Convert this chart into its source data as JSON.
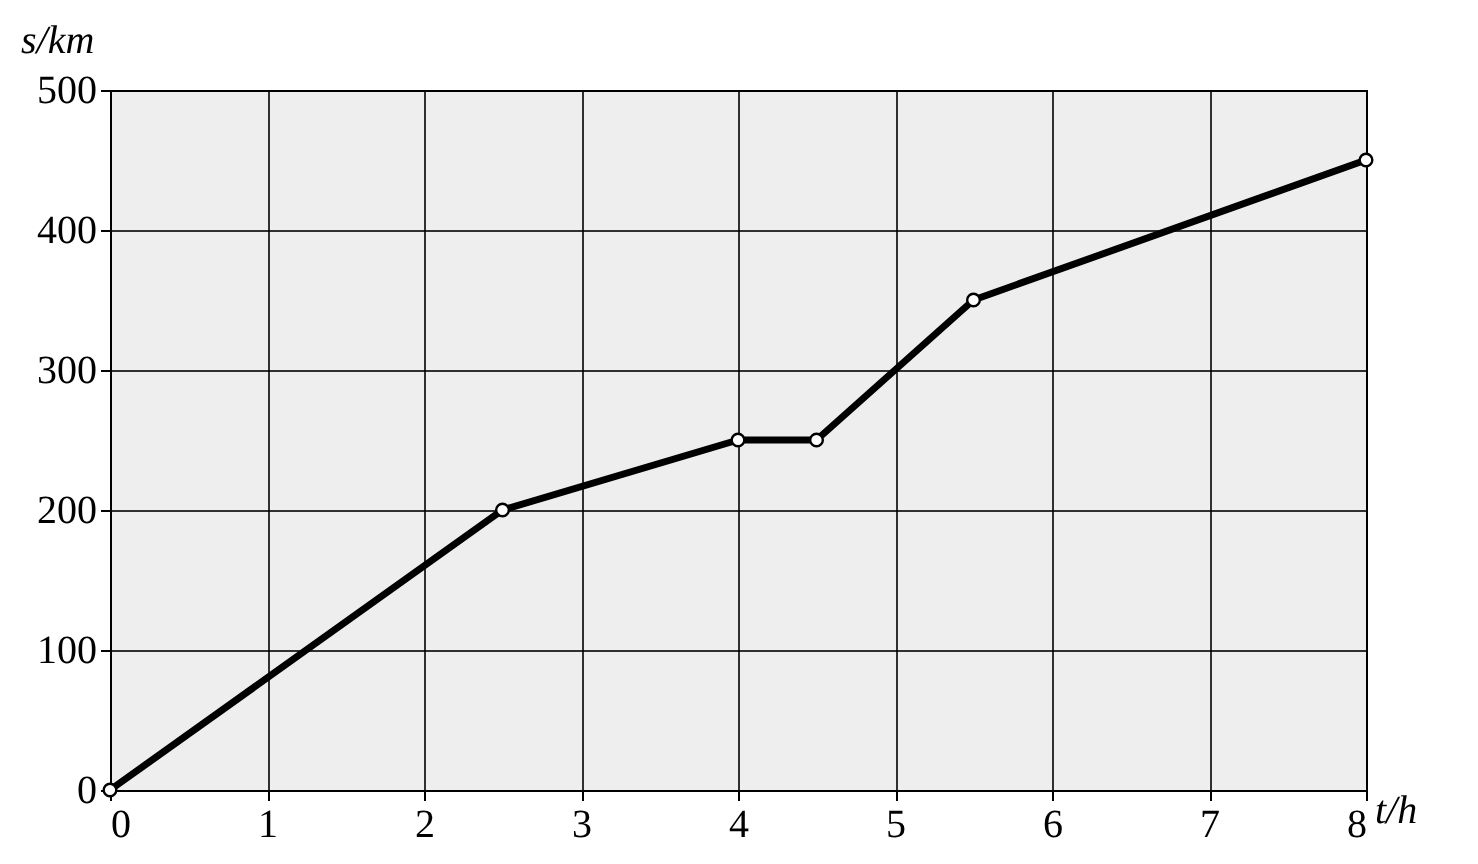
{
  "chart_data": {
    "type": "line",
    "xlabel": "t/h",
    "ylabel": "s/km",
    "x": [
      0,
      2.5,
      4,
      4.5,
      5.5,
      8
    ],
    "series": [
      {
        "color": "#000000",
        "values": [
          0,
          200,
          250,
          250,
          350,
          450
        ]
      }
    ],
    "xlim": [
      0,
      8
    ],
    "ylim": [
      0,
      500
    ],
    "xticks": [
      0,
      1,
      2,
      3,
      4,
      5,
      6,
      7,
      8
    ],
    "yticks": [
      0,
      100,
      200,
      300,
      400,
      500
    ],
    "grid": true,
    "marker": "circle",
    "line_style": "solid"
  }
}
